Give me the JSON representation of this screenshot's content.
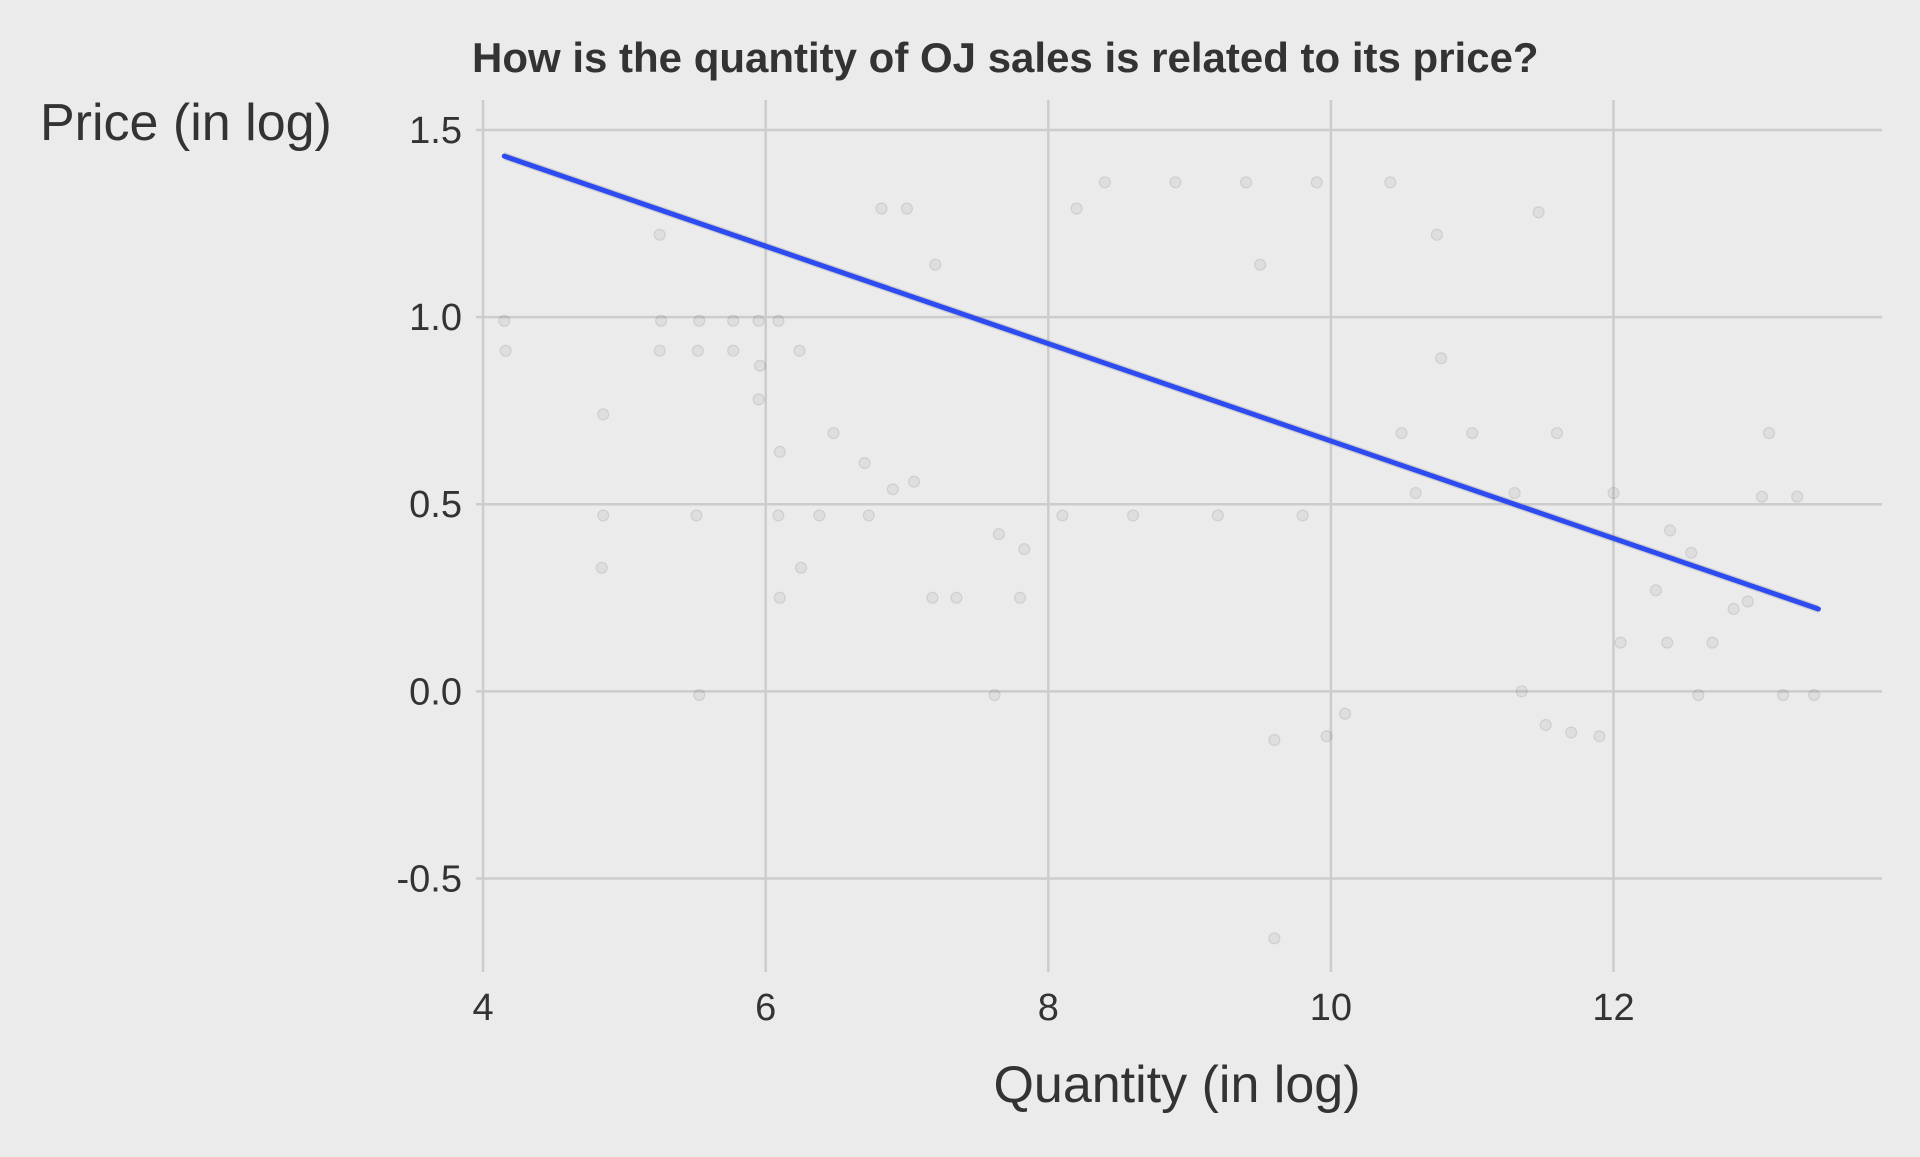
{
  "chart_data": {
    "type": "scatter",
    "title": "How is the quantity of OJ sales is related to its price?",
    "xlabel": "Quantity (in log)",
    "ylabel": "Price (in log)",
    "xlim": [
      3.95,
      13.9
    ],
    "ylim": [
      -0.75,
      1.58
    ],
    "x_ticks": [
      4,
      6,
      8,
      10,
      12
    ],
    "x_tick_labels": [
      "4",
      "6",
      "8",
      "10",
      "12"
    ],
    "y_ticks": [
      -0.5,
      0.0,
      0.5,
      1.0,
      1.5
    ],
    "y_tick_labels": [
      "-0.5",
      "0.0",
      "0.5",
      "1.0",
      "1.5"
    ],
    "grid": true,
    "legend": "none",
    "fit_line": {
      "method": "linear regression",
      "color": "#2e4bf2",
      "x": [
        4.15,
        13.45
      ],
      "y": [
        1.43,
        0.22
      ]
    },
    "point_color": "#000000",
    "series": [
      {
        "points": [
          [
            4.15,
            0.99
          ],
          [
            4.16,
            0.91
          ],
          [
            4.85,
            0.74
          ],
          [
            4.85,
            0.47
          ],
          [
            4.84,
            0.33
          ],
          [
            5.25,
            1.22
          ],
          [
            5.26,
            0.99
          ],
          [
            5.25,
            0.91
          ],
          [
            5.53,
            0.99
          ],
          [
            5.52,
            0.91
          ],
          [
            5.51,
            0.47
          ],
          [
            5.53,
            -0.01
          ],
          [
            5.77,
            0.99
          ],
          [
            5.77,
            0.91
          ],
          [
            5.95,
            0.99
          ],
          [
            5.96,
            0.87
          ],
          [
            5.95,
            0.78
          ],
          [
            6.09,
            0.99
          ],
          [
            6.1,
            0.64
          ],
          [
            6.09,
            0.47
          ],
          [
            6.1,
            0.25
          ],
          [
            6.24,
            0.91
          ],
          [
            6.25,
            0.33
          ],
          [
            6.38,
            0.47
          ],
          [
            6.48,
            0.69
          ],
          [
            6.7,
            0.61
          ],
          [
            6.73,
            0.47
          ],
          [
            6.82,
            1.29
          ],
          [
            6.9,
            0.54
          ],
          [
            7.0,
            1.29
          ],
          [
            7.05,
            0.56
          ],
          [
            7.18,
            0.25
          ],
          [
            7.2,
            1.14
          ],
          [
            7.35,
            0.25
          ],
          [
            7.62,
            -0.01
          ],
          [
            7.65,
            0.42
          ],
          [
            7.8,
            0.25
          ],
          [
            7.83,
            0.38
          ],
          [
            9.6,
            -0.13
          ],
          [
            9.6,
            -0.66
          ],
          [
            9.97,
            -0.12
          ],
          [
            10.1,
            -0.06
          ],
          [
            11.47,
            1.28
          ],
          [
            10.75,
            1.22
          ],
          [
            10.42,
            1.36
          ],
          [
            10.78,
            0.89
          ],
          [
            11.35,
            0.0
          ],
          [
            11.52,
            -0.09
          ],
          [
            11.7,
            -0.11
          ],
          [
            11.9,
            -0.12
          ],
          [
            12.05,
            0.13
          ],
          [
            12.3,
            0.27
          ],
          [
            12.38,
            0.13
          ],
          [
            12.4,
            0.43
          ],
          [
            12.55,
            0.37
          ],
          [
            12.6,
            -0.01
          ],
          [
            12.7,
            0.13
          ],
          [
            12.85,
            0.22
          ],
          [
            12.95,
            0.24
          ],
          [
            13.05,
            0.52
          ],
          [
            13.1,
            0.69
          ],
          [
            13.2,
            -0.01
          ],
          [
            13.3,
            0.52
          ],
          [
            13.42,
            -0.01
          ],
          [
            8.1,
            0.47
          ],
          [
            8.6,
            0.47
          ],
          [
            9.2,
            0.47
          ],
          [
            9.8,
            0.47
          ],
          [
            8.4,
            1.36
          ],
          [
            8.9,
            1.36
          ],
          [
            9.4,
            1.36
          ],
          [
            9.9,
            1.36
          ],
          [
            10.5,
            0.69
          ],
          [
            11.0,
            0.69
          ],
          [
            11.6,
            0.69
          ],
          [
            10.6,
            0.53
          ],
          [
            11.3,
            0.53
          ],
          [
            12.0,
            0.53
          ],
          [
            9.5,
            1.14
          ],
          [
            8.2,
            1.29
          ]
        ]
      }
    ]
  }
}
